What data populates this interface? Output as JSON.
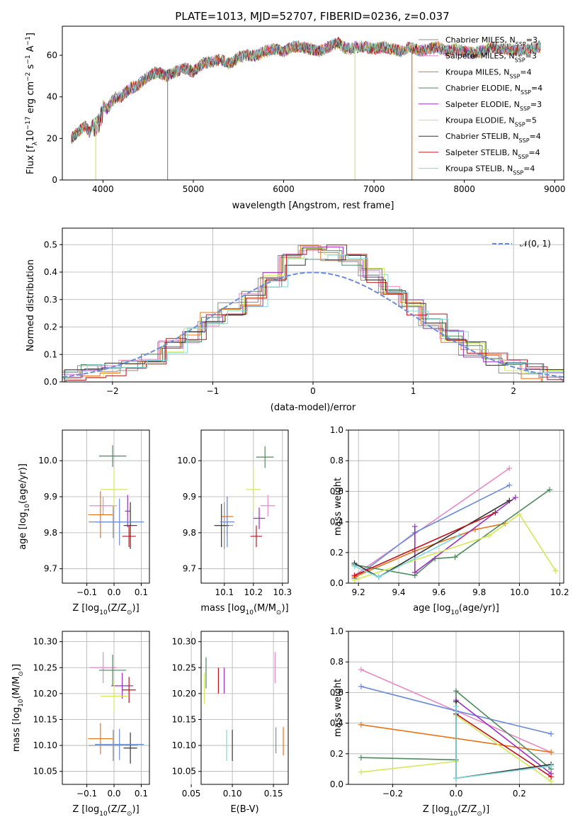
{
  "colors": {
    "chabrier_miles": "#8c8c8c",
    "salpeter_miles": "#e58ac8",
    "kroupa_miles": "#e8741a",
    "chabrier_elodie": "#4f8a5e",
    "salpeter_elodie": "#9b30c0",
    "kroupa_elodie": "#d4e857",
    "chabrier_stelib": "#333333",
    "salpeter_stelib": "#c0111a",
    "kroupa_stelib": "#7fd8dc",
    "normal_curve": "#6a8bd8"
  },
  "chart_data": [
    {
      "type": "line",
      "title": "PLATE=1013, MJD=52707, FIBERID=0236, z=0.037",
      "xlabel": "wavelength [Angstrom, rest frame]",
      "ylabel_parts": [
        "Flux [f",
        "λ",
        "10",
        "−17",
        " erg cm",
        "−2",
        " s",
        "−1",
        " A",
        "−1",
        "]"
      ],
      "xlim": [
        3550,
        9100
      ],
      "ylim": [
        0,
        74
      ],
      "xticks": [
        "4000",
        "5000",
        "6000",
        "7000",
        "8000",
        "9000"
      ],
      "yticks": [
        "0",
        "20",
        "40",
        "60"
      ],
      "legend_position": "top-right",
      "legend": [
        {
          "imf": "Chabrier MILES, N",
          "sub": "SSP",
          "val": "=3",
          "color_key": "chabrier_miles"
        },
        {
          "imf": "Salpeter MILES, N",
          "sub": "SSP",
          "val": "=3",
          "color_key": "salpeter_miles"
        },
        {
          "imf": "Kroupa MILES, N",
          "sub": "SSP",
          "val": "=4",
          "color_key": "kroupa_miles"
        },
        {
          "imf": "Chabrier ELODIE, N",
          "sub": "SSP",
          "val": "=4",
          "color_key": "chabrier_elodie"
        },
        {
          "imf": "Salpeter ELODIE, N",
          "sub": "SSP",
          "val": "=3",
          "color_key": "salpeter_elodie"
        },
        {
          "imf": "Kroupa ELODIE, N",
          "sub": "SSP",
          "val": "=5",
          "color_key": "kroupa_elodie"
        },
        {
          "imf": "Chabrier STELIB, N",
          "sub": "SSP",
          "val": "=4",
          "color_key": "chabrier_stelib"
        },
        {
          "imf": "Salpeter STELIB, N",
          "sub": "SSP",
          "val": "=4",
          "color_key": "salpeter_stelib"
        },
        {
          "imf": "Kroupa STELIB, N",
          "sub": "SSP",
          "val": "=4",
          "color_key": "kroupa_stelib"
        }
      ],
      "spectrum_x": [
        3650,
        3700,
        3750,
        3800,
        3850,
        3900,
        3950,
        4000,
        4050,
        4100,
        4150,
        4200,
        4300,
        4400,
        4500,
        4600,
        4700,
        4800,
        4900,
        5000,
        5100,
        5200,
        5300,
        5400,
        5500,
        5600,
        5700,
        5800,
        5900,
        6000,
        6100,
        6200,
        6300,
        6400,
        6500,
        6600,
        6700,
        6800,
        6900,
        7000,
        7100,
        7200,
        7300,
        7400,
        7500,
        7600,
        7700,
        7800,
        7900,
        8000,
        8100,
        8200,
        8300,
        8400,
        8500,
        8600,
        8700,
        8800
      ],
      "spectrum_y": [
        20,
        22,
        24,
        26,
        23,
        28,
        30,
        36,
        34,
        38,
        40,
        40,
        44,
        46,
        50,
        52,
        50,
        52,
        54,
        52,
        56,
        57,
        58,
        56,
        59,
        60,
        60,
        62,
        63,
        62,
        64,
        64,
        63,
        62,
        64,
        66,
        63,
        64,
        64,
        63,
        64,
        63,
        62,
        64,
        62,
        63,
        64,
        62,
        63,
        62,
        61,
        62,
        64,
        63,
        63,
        62,
        63,
        64
      ],
      "gaps": [
        {
          "x": 3920,
          "color_key": "kroupa_elodie"
        },
        {
          "x": 4715,
          "color_key": "chabrier_miles"
        },
        {
          "x": 6790,
          "color_key": "kroupa_elodie"
        },
        {
          "x": 7420,
          "color_key": "kroupa_miles"
        }
      ]
    },
    {
      "type": "step",
      "ylabel": "Normed distribution",
      "xlabel": "(data-model)/error",
      "xlim": [
        -2.5,
        2.5
      ],
      "ylim": [
        0,
        0.56
      ],
      "xticks": [
        "−2",
        "−1",
        "0",
        "1",
        "2"
      ],
      "yticks": [
        "0.0",
        "0.1",
        "0.2",
        "0.3",
        "0.4",
        "0.5"
      ],
      "grid": true,
      "legend_label": "𝒩(0, 1)",
      "legend_position": "top-right",
      "bin_edges": [
        -2.5,
        -2.3,
        -2.1,
        -1.9,
        -1.7,
        -1.5,
        -1.3,
        -1.1,
        -0.9,
        -0.7,
        -0.5,
        -0.3,
        -0.1,
        0.1,
        0.3,
        0.5,
        0.7,
        0.9,
        1.1,
        1.3,
        1.5,
        1.7,
        1.9,
        2.1,
        2.3,
        2.5
      ],
      "hist_base": [
        0.025,
        0.035,
        0.05,
        0.065,
        0.09,
        0.13,
        0.17,
        0.23,
        0.27,
        0.3,
        0.37,
        0.44,
        0.47,
        0.47,
        0.45,
        0.39,
        0.33,
        0.27,
        0.22,
        0.17,
        0.12,
        0.08,
        0.06,
        0.04,
        0.02
      ]
    },
    {
      "type": "scatter",
      "xlabel_parts": [
        "Z [log",
        "10",
        "(Z/Z",
        "⊙",
        ")]"
      ],
      "ylabel_parts": [
        "age  [log",
        "10",
        "(age/yr)]"
      ],
      "xlim": [
        -0.19,
        0.13
      ],
      "ylim": [
        9.66,
        10.085
      ],
      "xticks": [
        "−0.1",
        "0.0",
        "0.1"
      ],
      "yticks": [
        "9.7",
        "9.8",
        "9.9",
        "10.0"
      ],
      "grid": true,
      "points": [
        {
          "x": -0.003,
          "y": 9.83,
          "xerr": 0.18,
          "yerr": 0.09,
          "color_key": "chabrier_miles"
        },
        {
          "x": -0.04,
          "y": 9.875,
          "xerr": 0.1,
          "yerr": 0.05,
          "color_key": "salpeter_miles"
        },
        {
          "x": -0.05,
          "y": 9.85,
          "xerr": 0.09,
          "yerr": 0.13,
          "color_key": "kroupa_miles"
        },
        {
          "x": -0.005,
          "y": 10.013,
          "xerr": 0.1,
          "yerr": 0.06,
          "color_key": "chabrier_elodie"
        },
        {
          "x": 0.05,
          "y": 9.86,
          "xerr": 0.02,
          "yerr": 0.09,
          "color_key": "salpeter_elodie"
        },
        {
          "x": 0.0,
          "y": 9.92,
          "xerr": 0.1,
          "yerr": 0.11,
          "color_key": "kroupa_elodie"
        },
        {
          "x": 0.06,
          "y": 9.82,
          "xerr": 0.05,
          "yerr": 0.13,
          "color_key": "chabrier_stelib"
        },
        {
          "x": 0.055,
          "y": 9.79,
          "xerr": 0.05,
          "yerr": 0.06,
          "color_key": "salpeter_stelib"
        },
        {
          "x": 0.02,
          "y": 9.83,
          "xerr": 0.18,
          "yerr": 0.13,
          "color_key": "normal_curve"
        }
      ]
    },
    {
      "type": "scatter",
      "xlabel_parts": [
        "mass [log",
        "10",
        "(M/M",
        "⊙",
        ")]"
      ],
      "xlim": [
        10.02,
        10.32
      ],
      "ylim": [
        9.66,
        10.085
      ],
      "xticks": [
        "10.1",
        "10.2",
        "10.3"
      ],
      "yticks": [
        "9.7",
        "9.8",
        "9.9",
        "10.0"
      ],
      "grid": true,
      "points": [
        {
          "x": 10.1,
          "y": 9.82,
          "xerr": 0.06,
          "yerr": 0.13,
          "color_key": "chabrier_miles"
        },
        {
          "x": 10.25,
          "y": 9.875,
          "xerr": 0.05,
          "yerr": 0.06,
          "color_key": "salpeter_miles"
        },
        {
          "x": 10.11,
          "y": 9.845,
          "xerr": 0.04,
          "yerr": 0.11,
          "color_key": "kroupa_miles"
        },
        {
          "x": 10.24,
          "y": 10.01,
          "xerr": 0.06,
          "yerr": 0.06,
          "color_key": "chabrier_elodie"
        },
        {
          "x": 10.22,
          "y": 9.84,
          "xerr": 0.04,
          "yerr": 0.06,
          "color_key": "salpeter_elodie"
        },
        {
          "x": 10.2,
          "y": 9.92,
          "xerr": 0.05,
          "yerr": 0.12,
          "color_key": "kroupa_elodie"
        },
        {
          "x": 10.09,
          "y": 9.82,
          "xerr": 0.05,
          "yerr": 0.12,
          "color_key": "chabrier_stelib"
        },
        {
          "x": 10.21,
          "y": 9.79,
          "xerr": 0.04,
          "yerr": 0.06,
          "color_key": "salpeter_stelib"
        },
        {
          "x": 10.11,
          "y": 9.83,
          "xerr": 0.05,
          "yerr": 0.14,
          "color_key": "normal_curve"
        }
      ]
    },
    {
      "type": "line",
      "xlabel_parts": [
        "age  [log",
        "10",
        "(age/yr)]"
      ],
      "ylabel": "mass weight",
      "xlim": [
        9.15,
        10.22
      ],
      "ylim": [
        0,
        1.0
      ],
      "xticks": [
        "9.2",
        "9.4",
        "9.6",
        "9.8",
        "10.0",
        "10.2"
      ],
      "yticks": [
        "0.0",
        "0.2",
        "0.4",
        "0.6",
        "0.8",
        "1.0"
      ],
      "grid": true,
      "series": [
        {
          "color_key": "salpeter_miles",
          "x": [
            9.18,
            9.95
          ],
          "y": [
            0.05,
            0.75
          ]
        },
        {
          "color_key": "normal_curve",
          "x": [
            9.18,
            9.48,
            9.95
          ],
          "y": [
            0.03,
            0.33,
            0.64
          ]
        },
        {
          "color_key": "kroupa_miles",
          "x": [
            9.18,
            9.48,
            9.78,
            9.93
          ],
          "y": [
            0.04,
            0.21,
            0.35,
            0.39
          ]
        },
        {
          "color_key": "chabrier_elodie",
          "x": [
            9.18,
            9.48,
            9.58,
            9.68,
            10.15
          ],
          "y": [
            0.12,
            0.05,
            0.16,
            0.17,
            0.61
          ]
        },
        {
          "color_key": "salpeter_elodie",
          "x": [
            9.48,
            9.48,
            9.98
          ],
          "y": [
            0.37,
            0.07,
            0.56
          ]
        },
        {
          "color_key": "kroupa_elodie",
          "x": [
            9.18,
            9.85,
            10.0,
            10.18
          ],
          "y": [
            0.02,
            0.31,
            0.45,
            0.08
          ]
        },
        {
          "color_key": "chabrier_stelib",
          "x": [
            9.18,
            9.3,
            9.95
          ],
          "y": [
            0.13,
            0.04,
            0.54
          ]
        },
        {
          "color_key": "salpeter_stelib",
          "x": [
            9.18,
            9.88
          ],
          "y": [
            0.05,
            0.46
          ]
        },
        {
          "color_key": "kroupa_stelib",
          "x": [
            9.18,
            9.3,
            9.7
          ],
          "y": [
            0.11,
            0.04,
            0.31
          ]
        }
      ]
    },
    {
      "type": "scatter",
      "xlabel_parts": [
        "Z [log",
        "10",
        "(Z/Z",
        "⊙",
        ")]"
      ],
      "ylabel_parts": [
        "mass [log",
        "10",
        "(M/M",
        "⊙",
        ")]"
      ],
      "xlim": [
        -0.19,
        0.13
      ],
      "ylim": [
        10.025,
        10.32
      ],
      "xticks": [
        "−0.1",
        "0.0",
        "0.1"
      ],
      "yticks": [
        "10.05",
        "10.10",
        "10.15",
        "10.20",
        "10.25",
        "10.30"
      ],
      "grid": true,
      "points": [
        {
          "x": -0.003,
          "y": 10.1,
          "xerr": 0.18,
          "yerr": 0.06,
          "color_key": "chabrier_miles"
        },
        {
          "x": -0.04,
          "y": 10.25,
          "xerr": 0.1,
          "yerr": 0.06,
          "color_key": "salpeter_miles"
        },
        {
          "x": -0.05,
          "y": 10.113,
          "xerr": 0.09,
          "yerr": 0.06,
          "color_key": "kroupa_miles"
        },
        {
          "x": -0.005,
          "y": 10.245,
          "xerr": 0.1,
          "yerr": 0.06,
          "color_key": "chabrier_elodie"
        },
        {
          "x": 0.03,
          "y": 10.215,
          "xerr": 0.08,
          "yerr": 0.05,
          "color_key": "salpeter_elodie"
        },
        {
          "x": 0.0,
          "y": 10.195,
          "xerr": 0.1,
          "yerr": 0.06,
          "color_key": "kroupa_elodie"
        },
        {
          "x": 0.06,
          "y": 10.095,
          "xerr": 0.05,
          "yerr": 0.06,
          "color_key": "chabrier_stelib"
        },
        {
          "x": 0.055,
          "y": 10.207,
          "xerr": 0.05,
          "yerr": 0.05,
          "color_key": "salpeter_stelib"
        },
        {
          "x": 0.02,
          "y": 10.102,
          "xerr": 0.18,
          "yerr": 0.06,
          "color_key": "normal_curve"
        }
      ]
    },
    {
      "type": "scatter",
      "xlabel": "E(B-V)",
      "xlim": [
        0.062,
        0.168
      ],
      "ylim": [
        10.025,
        10.32
      ],
      "xticks": [
        "0.05",
        "0.10",
        "0.15"
      ],
      "yticks": [
        "10.05",
        "10.10",
        "10.15",
        "10.20",
        "10.25",
        "10.30"
      ],
      "grid": true,
      "points": [
        {
          "x": 0.068,
          "y": 10.24,
          "yerr": 0.06,
          "color_key": "chabrier_elodie"
        },
        {
          "x": 0.066,
          "y": 10.21,
          "yerr": 0.06,
          "color_key": "kroupa_elodie"
        },
        {
          "x": 0.083,
          "y": 10.225,
          "yerr": 0.05,
          "color_key": "salpeter_stelib"
        },
        {
          "x": 0.09,
          "y": 10.225,
          "yerr": 0.05,
          "color_key": "salpeter_elodie"
        },
        {
          "x": 0.093,
          "y": 10.1,
          "yerr": 0.06,
          "color_key": "kroupa_stelib"
        },
        {
          "x": 0.1,
          "y": 10.1,
          "yerr": 0.06,
          "color_key": "chabrier_stelib"
        },
        {
          "x": 0.152,
          "y": 10.25,
          "yerr": 0.06,
          "color_key": "salpeter_miles"
        },
        {
          "x": 0.153,
          "y": 10.11,
          "yerr": 0.05,
          "color_key": "normal_curve"
        },
        {
          "x": 0.162,
          "y": 10.108,
          "yerr": 0.055,
          "color_key": "kroupa_miles"
        }
      ]
    },
    {
      "type": "line",
      "xlabel_parts": [
        "Z [log",
        "10",
        "(Z/Z",
        "⊙",
        ")]"
      ],
      "ylabel": "mass weight",
      "xlim": [
        -0.34,
        0.34
      ],
      "ylim": [
        0,
        1.0
      ],
      "xticks": [
        "−0.2",
        "0.0",
        "0.2"
      ],
      "yticks": [
        "0.0",
        "0.2",
        "0.4",
        "0.6",
        "0.8",
        "1.0"
      ],
      "grid": true,
      "series": [
        {
          "color_key": "salpeter_miles",
          "x": [
            -0.3,
            0.0,
            0.3
          ],
          "y": [
            0.75,
            0.48,
            0.21
          ]
        },
        {
          "color_key": "normal_curve",
          "x": [
            -0.3,
            0.0,
            0.3
          ],
          "y": [
            0.64,
            0.48,
            0.33
          ]
        },
        {
          "color_key": "kroupa_miles",
          "x": [
            -0.3,
            0.0,
            0.3
          ],
          "y": [
            0.39,
            0.3,
            0.21
          ]
        },
        {
          "color_key": "chabrier_elodie",
          "x": [
            -0.3,
            0.0,
            0.0,
            0.3
          ],
          "y": [
            0.175,
            0.16,
            0.61,
            0.1
          ]
        },
        {
          "color_key": "salpeter_elodie",
          "x": [
            0.0,
            0.3
          ],
          "y": [
            0.55,
            0.07
          ]
        },
        {
          "color_key": "kroupa_elodie",
          "x": [
            -0.3,
            0.0,
            0.0,
            0.3
          ],
          "y": [
            0.08,
            0.15,
            0.45,
            0.02
          ]
        },
        {
          "color_key": "chabrier_stelib",
          "x": [
            0.0,
            0.0,
            0.3
          ],
          "y": [
            0.54,
            0.04,
            0.13
          ]
        },
        {
          "color_key": "salpeter_stelib",
          "x": [
            0.0,
            0.3
          ],
          "y": [
            0.46,
            0.05
          ]
        },
        {
          "color_key": "kroupa_stelib",
          "x": [
            0.0,
            0.0,
            0.3
          ],
          "y": [
            0.51,
            0.04,
            0.12
          ]
        }
      ]
    }
  ]
}
